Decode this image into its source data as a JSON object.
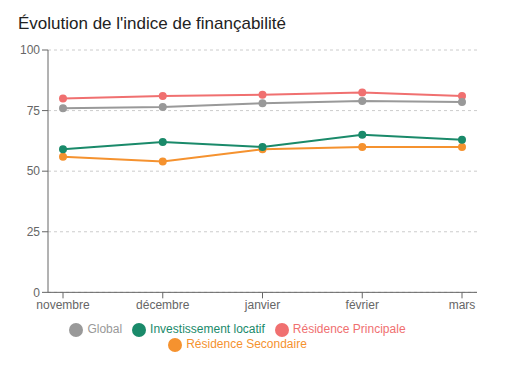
{
  "chart_data": {
    "type": "line",
    "title": "Évolution de l'indice de finançabilité",
    "categories": [
      "novembre",
      "décembre",
      "janvier",
      "février",
      "mars"
    ],
    "series": [
      {
        "name": "Résidence Principale",
        "color": "#f07070",
        "values": [
          80,
          81,
          81.5,
          82.5,
          81
        ]
      },
      {
        "name": "Résidence Secondaire",
        "color": "#f5922f",
        "values": [
          56,
          54,
          59,
          60,
          60
        ]
      },
      {
        "name": "Investissement locatif",
        "color": "#1a8a6a",
        "values": [
          59,
          62,
          60,
          65,
          63
        ]
      },
      {
        "name": "Global",
        "color": "#999999",
        "values": [
          76,
          76.5,
          78,
          79,
          78.5
        ]
      }
    ],
    "ylim": [
      0,
      100
    ],
    "yticks": [
      0,
      25,
      50,
      75,
      100
    ],
    "grid": true,
    "legend": "bottom",
    "marker": "circle"
  }
}
